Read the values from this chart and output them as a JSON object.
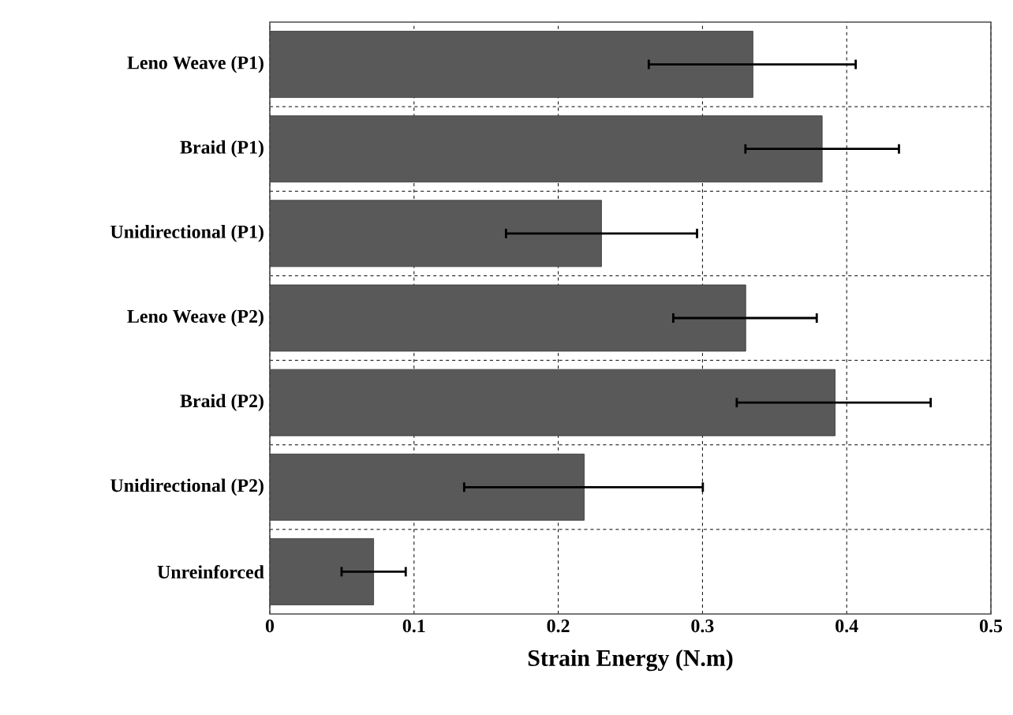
{
  "chart_data": {
    "type": "bar",
    "orientation": "horizontal",
    "xlabel": "Strain Energy (N.m)",
    "categories": [
      "Leno Weave (P1)",
      "Braid (P1)",
      "Unidirectional (P1)",
      "Leno Weave (P2)",
      "Braid (P2)",
      "Unidirectional (P2)",
      "Unreinforced"
    ],
    "values": [
      0.335,
      0.383,
      0.23,
      0.33,
      0.392,
      0.218,
      0.072
    ],
    "errors": [
      [
        0.262,
        0.407
      ],
      [
        0.329,
        0.437
      ],
      [
        0.163,
        0.297
      ],
      [
        0.279,
        0.38
      ],
      [
        0.323,
        0.459
      ],
      [
        0.134,
        0.301
      ],
      [
        0.049,
        0.095
      ]
    ],
    "color": "#595959",
    "xlim": [
      0,
      0.5
    ],
    "xticks": [
      0,
      0.1,
      0.2,
      0.3,
      0.4,
      0.5
    ],
    "grid": true
  }
}
